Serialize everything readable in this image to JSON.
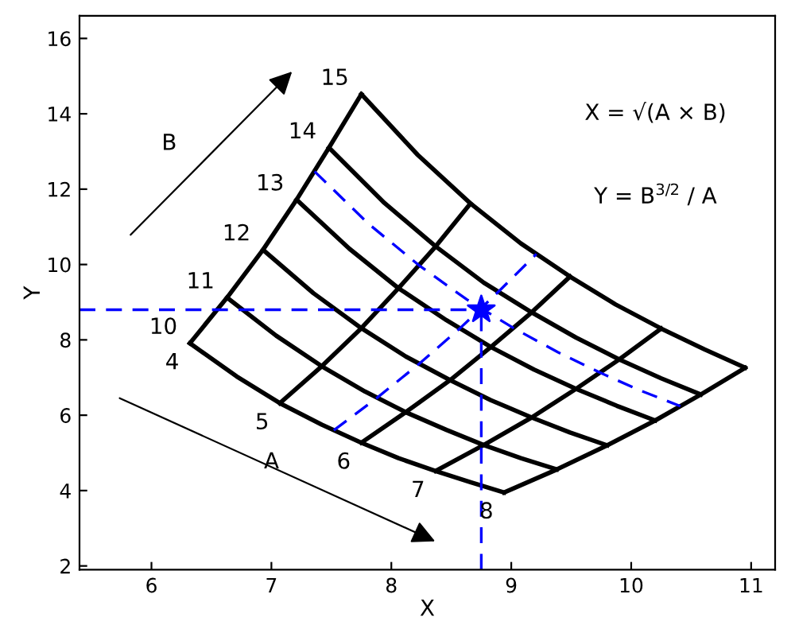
{
  "chart_data": {
    "type": "line",
    "xlabel": "X",
    "ylabel": "Y",
    "xlim": [
      5.4,
      11.2
    ],
    "ylim": [
      1.9,
      16.6
    ],
    "xticks": [
      6,
      7,
      8,
      9,
      10,
      11
    ],
    "yticks": [
      2,
      4,
      6,
      8,
      10,
      12,
      14,
      16
    ],
    "grid": false,
    "legend": false,
    "series": [
      {
        "color": "#000000",
        "line_style": "solid",
        "x": [
          6.32,
          6.63,
          6.93,
          7.21,
          7.48,
          7.75
        ],
        "values": [
          7.91,
          9.12,
          10.39,
          11.72,
          13.1,
          14.52
        ]
      },
      {
        "color": "#000000",
        "line_style": "solid",
        "x": [
          7.07,
          7.42,
          7.75,
          8.06,
          8.37,
          8.66
        ],
        "values": [
          6.32,
          7.3,
          8.31,
          9.37,
          10.48,
          11.62
        ]
      },
      {
        "color": "#000000",
        "line_style": "solid",
        "x": [
          7.75,
          8.12,
          8.49,
          8.83,
          9.17,
          9.49
        ],
        "values": [
          5.27,
          6.08,
          6.93,
          7.81,
          8.73,
          9.68
        ]
      },
      {
        "color": "#000000",
        "line_style": "solid",
        "x": [
          8.37,
          8.77,
          9.17,
          9.54,
          9.9,
          10.25
        ],
        "values": [
          4.52,
          5.21,
          5.94,
          6.7,
          7.48,
          8.3
        ]
      },
      {
        "color": "#000000",
        "line_style": "solid",
        "x": [
          8.94,
          9.38,
          9.8,
          10.2,
          10.58,
          10.95
        ],
        "values": [
          3.95,
          4.56,
          5.2,
          5.86,
          6.55,
          7.26
        ]
      },
      {
        "color": "#000000",
        "line_style": "solid",
        "x": [
          6.32,
          6.71,
          7.07,
          7.42,
          7.75,
          8.06,
          8.37,
          8.66,
          8.94
        ],
        "values": [
          7.91,
          7.03,
          6.32,
          5.75,
          5.27,
          4.86,
          4.52,
          4.22,
          3.95
        ]
      },
      {
        "color": "#000000",
        "line_style": "solid",
        "x": [
          6.63,
          7.04,
          7.42,
          7.78,
          8.12,
          8.46,
          8.77,
          9.08,
          9.38
        ],
        "values": [
          9.12,
          8.11,
          7.3,
          6.63,
          6.08,
          5.61,
          5.21,
          4.86,
          4.56
        ]
      },
      {
        "color": "#000000",
        "line_style": "solid",
        "x": [
          6.93,
          7.35,
          7.75,
          8.12,
          8.49,
          8.83,
          9.17,
          9.49,
          9.8
        ],
        "values": [
          10.39,
          9.24,
          8.31,
          7.56,
          6.93,
          6.4,
          5.94,
          5.54,
          5.2
        ]
      },
      {
        "color": "#000000",
        "line_style": "solid",
        "x": [
          7.21,
          7.65,
          8.06,
          8.46,
          8.83,
          9.19,
          9.54,
          9.88,
          10.2
        ],
        "values": [
          11.72,
          10.42,
          9.37,
          8.52,
          7.81,
          7.21,
          6.7,
          6.25,
          5.86
        ]
      },
      {
        "color": "#000000",
        "line_style": "solid",
        "x": [
          7.48,
          7.94,
          8.37,
          8.77,
          9.17,
          9.54,
          9.9,
          10.25,
          10.58
        ],
        "values": [
          13.1,
          11.64,
          10.48,
          9.52,
          8.73,
          8.06,
          7.48,
          6.98,
          6.55
        ]
      },
      {
        "color": "#000000",
        "line_style": "solid",
        "x": [
          7.75,
          8.22,
          8.66,
          9.08,
          9.49,
          9.87,
          10.25,
          10.61,
          10.95
        ],
        "values": [
          14.52,
          12.91,
          11.62,
          10.56,
          9.68,
          8.94,
          8.3,
          7.75,
          7.26
        ]
      },
      {
        "color": "#0000ff",
        "line_style": "dashed",
        "x": [
          7.36,
          7.81,
          8.23,
          8.63,
          9.02,
          9.39,
          9.74,
          10.08,
          10.41
        ],
        "values": [
          12.47,
          11.08,
          9.98,
          9.07,
          8.31,
          7.67,
          7.13,
          6.65,
          6.24
        ]
      },
      {
        "color": "#0000ff",
        "line_style": "dashed",
        "x": [
          7.52,
          7.88,
          8.23,
          8.57,
          8.89,
          9.21
        ],
        "values": [
          5.6,
          6.46,
          7.36,
          8.3,
          9.27,
          10.28
        ]
      },
      {
        "color": "#0000ff",
        "line_style": "dashed",
        "x": [
          5.4,
          8.75
        ],
        "values": [
          8.8,
          8.8
        ]
      },
      {
        "color": "#0000ff",
        "line_style": "dashed",
        "x": [
          8.75,
          8.75
        ],
        "values": [
          1.9,
          8.8
        ]
      },
      {
        "type": "scatter",
        "color": "#0000ff",
        "marker": "star",
        "x": [
          8.75
        ],
        "values": [
          8.8
        ]
      }
    ],
    "annotations": [
      {
        "text": "4",
        "x": 6.32,
        "y": 7.91
      },
      {
        "text": "5",
        "x": 7.07,
        "y": 6.32
      },
      {
        "text": "6",
        "x": 7.75,
        "y": 5.27
      },
      {
        "text": "7",
        "x": 8.37,
        "y": 4.52
      },
      {
        "text": "8",
        "x": 8.94,
        "y": 3.95
      },
      {
        "text": "10",
        "x": 6.32,
        "y": 7.91
      },
      {
        "text": "11",
        "x": 6.63,
        "y": 9.12
      },
      {
        "text": "12",
        "x": 6.93,
        "y": 10.39
      },
      {
        "text": "13",
        "x": 7.21,
        "y": 11.72
      },
      {
        "text": "14",
        "x": 7.48,
        "y": 13.1
      },
      {
        "text": "15",
        "x": 7.75,
        "y": 14.52
      },
      "B",
      "A",
      "X = √(A × B)",
      "Y = B$^{3/2}$ / A"
    ]
  }
}
